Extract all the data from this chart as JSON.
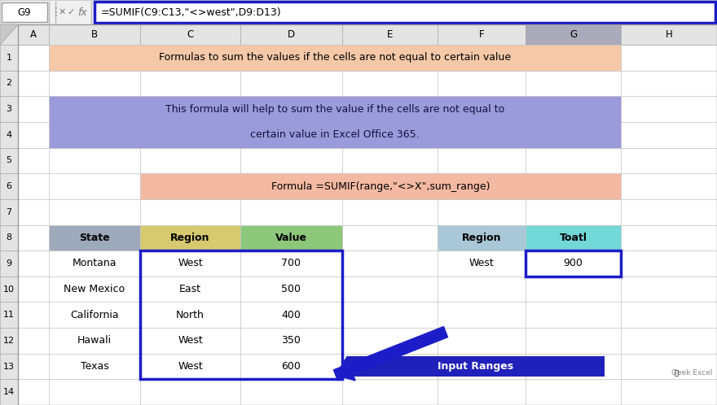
{
  "formula_bar_text": "=SUMIF(C9:C13,\"<>west\",D9:D13)",
  "cell_ref": "G9",
  "row1_title": "Formulas to sum the values if the cells are not equal to certain value",
  "description_line1": "This formula will help to sum the value if the cells are not equal to",
  "description_line2": "certain value in Excel Office 365.",
  "formula_display": "Formula =SUMIF(range,\"<>X\",sum_range)",
  "header_state": "State",
  "header_region": "Region",
  "header_value": "Value",
  "header_region2": "Region",
  "header_toatl": "Toatl",
  "states": [
    "Montana",
    "New Mexico",
    "California",
    "Hawali",
    "Texas"
  ],
  "regions": [
    "West",
    "East",
    "North",
    "West",
    "West"
  ],
  "values": [
    700,
    500,
    400,
    350,
    600
  ],
  "region2": "West",
  "total": 900,
  "input_ranges_label": "Input Ranges",
  "geek_excel_label": "Geek Excel",
  "col_labels": [
    "",
    "A",
    "B",
    "C",
    "D",
    "E",
    "F",
    "G",
    "H"
  ],
  "row_labels": [
    "1",
    "2",
    "3",
    "4",
    "5",
    "6",
    "7",
    "8",
    "9",
    "10",
    "11",
    "12",
    "13",
    "14"
  ],
  "bg_color": "#FFFFFF",
  "row1_bg": "#F5C9A8",
  "row3_4_bg": "#9B9BDB",
  "row6_bg": "#F4B9A2",
  "header8_state_bg": "#9DAABB",
  "header8_region_bg": "#D6C96E",
  "header8_value_bg": "#8DC87A",
  "header8_region2_bg": "#A8C8D8",
  "header8_toatl_bg": "#72D8D8",
  "formula_border_color": "#1C1CC8",
  "data_box_color": "#1C1CC8",
  "result_box_color": "#1C1CC8",
  "input_ranges_box_bg": "#2020BB",
  "arrow_color": "#1C1CC8",
  "col_header_bg": "#E4E4E4",
  "selected_col_bg": "#AAAABB",
  "grid_color": "#C8C8C8"
}
